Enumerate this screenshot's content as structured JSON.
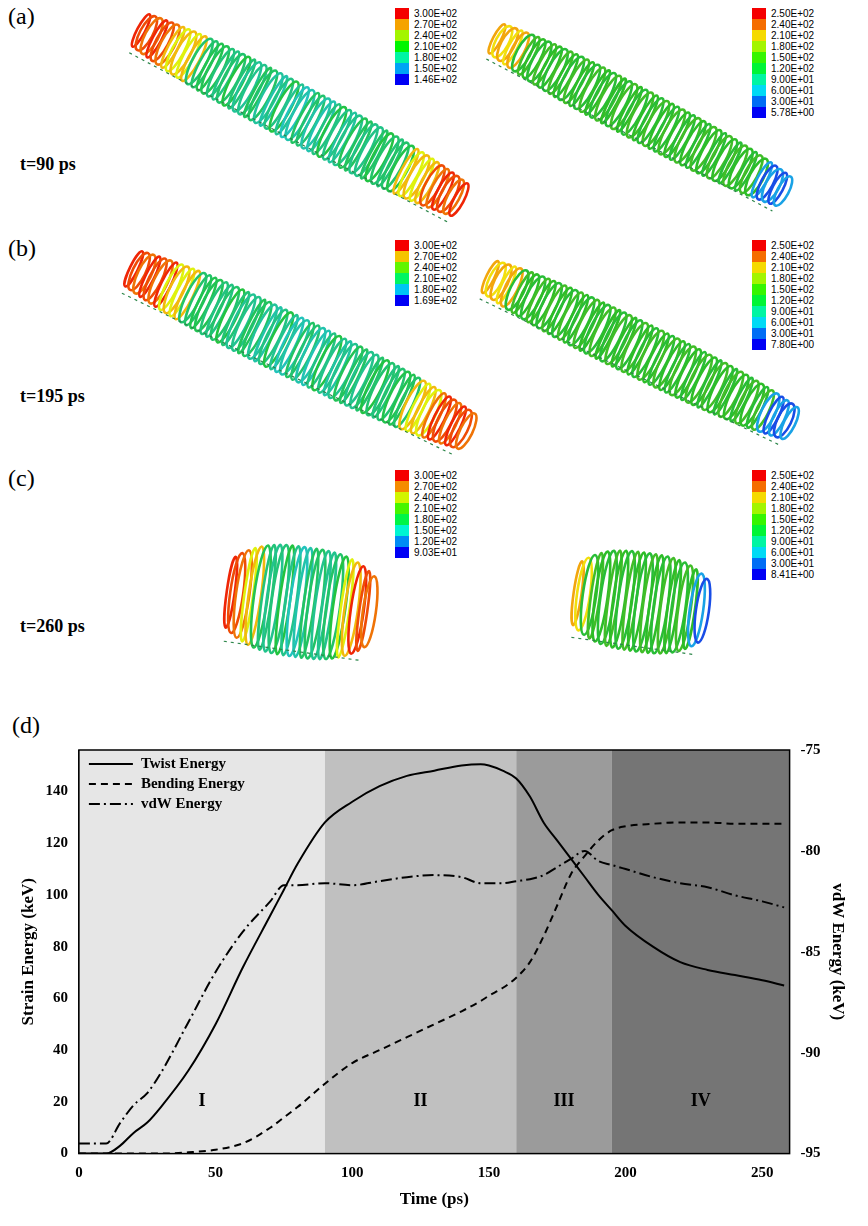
{
  "panels": [
    {
      "label": "(a)",
      "time": "t=90 ps",
      "colorbars": [
        [
          "3.00E+02",
          "2.70E+02",
          "2.40E+02",
          "2.10E+02",
          "1.80E+02",
          "1.50E+02",
          "1.46E+02"
        ],
        [
          "2.50E+02",
          "2.40E+02",
          "2.10E+02",
          "1.80E+02",
          "1.50E+02",
          "1.20E+02",
          "9.00E+01",
          "6.00E+01",
          "3.00E+01",
          "5.78E+00"
        ]
      ]
    },
    {
      "label": "(b)",
      "time": "t=195 ps",
      "colorbars": [
        [
          "3.00E+02",
          "2.70E+02",
          "2.40E+02",
          "2.10E+02",
          "1.80E+02",
          "1.69E+02"
        ],
        [
          "2.50E+02",
          "2.40E+02",
          "2.10E+02",
          "1.80E+02",
          "1.50E+02",
          "1.20E+02",
          "9.00E+01",
          "6.00E+01",
          "3.00E+01",
          "7.80E+00"
        ]
      ]
    },
    {
      "label": "(c)",
      "time": "t=260 ps",
      "colorbars": [
        [
          "3.00E+02",
          "2.70E+02",
          "2.40E+02",
          "2.10E+02",
          "1.80E+02",
          "1.50E+02",
          "1.20E+02",
          "9.03E+01"
        ],
        [
          "2.50E+02",
          "2.40E+02",
          "2.10E+02",
          "1.80E+02",
          "1.50E+02",
          "1.20E+02",
          "9.00E+01",
          "6.00E+01",
          "3.00E+01",
          "8.41E+00"
        ]
      ]
    }
  ],
  "chart_data": {
    "label": "(d)",
    "type": "line",
    "x_label": "Time (ps)",
    "y_label": "Strain Energy (keV)",
    "y2_label": "vdW Energy (keV)",
    "x": [
      0,
      10,
      15,
      20,
      25,
      30,
      40,
      50,
      60,
      70,
      75,
      80,
      90,
      100,
      110,
      120,
      130,
      140,
      147,
      150,
      155,
      160,
      165,
      170,
      175,
      180,
      185,
      190,
      195,
      200,
      210,
      220,
      230,
      240,
      250,
      258
    ],
    "xlim": [
      0,
      260
    ],
    "xticks": [
      0,
      50,
      100,
      150,
      200,
      250
    ],
    "ylim": [
      0,
      156
    ],
    "yticks": [
      0,
      20,
      40,
      60,
      80,
      100,
      120,
      140
    ],
    "y2lim": [
      -95,
      -75
    ],
    "y2ticks": [
      -95,
      -90,
      -85,
      -80,
      -75
    ],
    "grid": false,
    "legend": "upper left",
    "regions": [
      {
        "label": "I",
        "from": 0,
        "to": 90
      },
      {
        "label": "II",
        "from": 90,
        "to": 160
      },
      {
        "label": "III",
        "from": 160,
        "to": 195
      },
      {
        "label": "IV",
        "from": 195,
        "to": 260
      }
    ],
    "series": [
      {
        "name": "Twist Energy",
        "color": "#000000",
        "line_style": "solid",
        "values": [
          0,
          0,
          3,
          8,
          12,
          18,
          32,
          50,
          72,
          92,
          102,
          112,
          128,
          136,
          142,
          146,
          148,
          150,
          150.5,
          150,
          148,
          145,
          138,
          128,
          121,
          114,
          107,
          100,
          94,
          88,
          80,
          74,
          71,
          69,
          67,
          65
        ]
      },
      {
        "name": "Bending Energy",
        "color": "#000000",
        "line_style": "dashed",
        "values": [
          0,
          0,
          0,
          0,
          0,
          0,
          0.5,
          1.5,
          4,
          10,
          14,
          18,
          27,
          35,
          40,
          45,
          50,
          55,
          59,
          61,
          64,
          68,
          74,
          84,
          96,
          108,
          115,
          121,
          125,
          126.5,
          127.5,
          128,
          128,
          127.5,
          127.5,
          127.5
        ]
      },
      {
        "name": "vdW Energy",
        "color": "#000000",
        "line_style": "dashdot",
        "axis": "y2",
        "values": [
          -94.5,
          -94.5,
          -93.5,
          -92.6,
          -92,
          -91,
          -88.5,
          -86,
          -84,
          -82.5,
          -81.7,
          -81.7,
          -81.6,
          -81.7,
          -81.5,
          -81.3,
          -81.2,
          -81.3,
          -81.6,
          -81.6,
          -81.6,
          -81.5,
          -81.4,
          -81.2,
          -80.8,
          -80.4,
          -80,
          -80.5,
          -80.7,
          -80.9,
          -81.3,
          -81.6,
          -81.8,
          -82.2,
          -82.5,
          -82.8
        ]
      }
    ]
  }
}
